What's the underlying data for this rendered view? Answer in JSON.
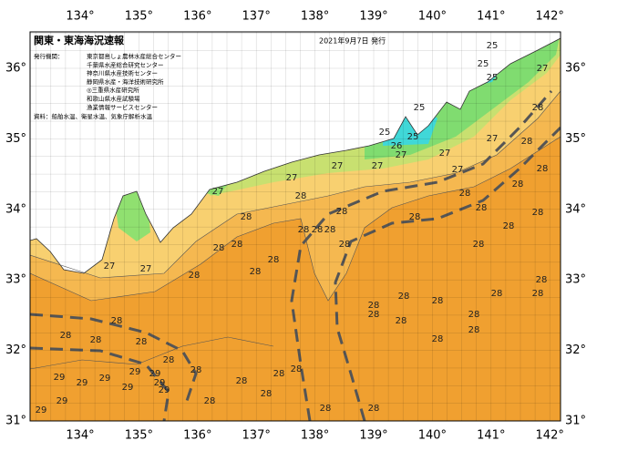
{
  "header": {
    "title": "関東・東海海況速報",
    "date": "2021年9月7日 発行"
  },
  "issuers": {
    "label": "発行機関：",
    "items": [
      "東京都島しょ農林水産総合センター",
      "千葉県水産総合研究センター",
      "神奈川県水産技術センター",
      "静岡県水産・海洋技術研究所",
      "◎三重県水産研究所",
      "和歌山県水産試験場",
      "漁業情報サービスセンター"
    ]
  },
  "source": "資料：船舶水温、衛星水温、気象庁解析水温",
  "axes": {
    "top": [
      "134°",
      "135°",
      "136°",
      "137°",
      "138°",
      "139°",
      "140°",
      "141°",
      "142°"
    ],
    "bottom": [
      "134°",
      "135°",
      "136°",
      "137°",
      "138°",
      "139°",
      "140°",
      "141°",
      "142°"
    ],
    "left": [
      "36°",
      "35°",
      "34°",
      "33°",
      "32°",
      "31°"
    ],
    "right": [
      "36°",
      "35°",
      "34°",
      "33°",
      "32°",
      "31°"
    ]
  },
  "temperature_labels": [
    25,
    25,
    25,
    27,
    25,
    25,
    25,
    26,
    27,
    27,
    28,
    28,
    27,
    28,
    28,
    28,
    28,
    27,
    27,
    27,
    27,
    27,
    28,
    28,
    28,
    28,
    28,
    28,
    28,
    28,
    28,
    28,
    28,
    28,
    28,
    28,
    28,
    28,
    27,
    27,
    28,
    28,
    28,
    28,
    28,
    28,
    28,
    28,
    28,
    28,
    28,
    28,
    28,
    28,
    28,
    28,
    28,
    28,
    28,
    28,
    29,
    29,
    29,
    29,
    29,
    29,
    29,
    29,
    29,
    28,
    28,
    29,
    28,
    28
  ]
}
